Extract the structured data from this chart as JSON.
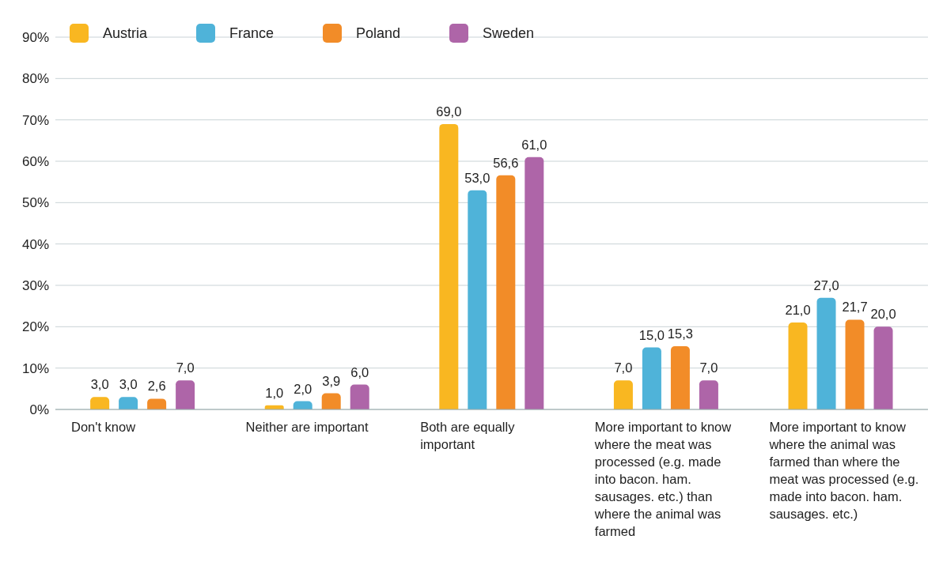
{
  "chart_data": {
    "type": "bar",
    "categories": [
      "Don't know",
      "Neither are important",
      "Both are equally important",
      "More important to know where the meat was processed (e.g. made into bacon. ham. sausages. etc.) than where the animal was farmed",
      "More important to know where the animal was farmed than where the meat was processed (e.g. made into bacon. ham. sausages. etc.)"
    ],
    "series": [
      {
        "name": "Austria",
        "color": "#f9b721",
        "values": [
          3.0,
          1.0,
          69.0,
          7.0,
          21.0
        ],
        "value_labels": [
          "3,0",
          "1,0",
          "69,0",
          "7,0",
          "21,0"
        ]
      },
      {
        "name": "France",
        "color": "#4fb3d9",
        "values": [
          3.0,
          2.0,
          53.0,
          15.0,
          27.0
        ],
        "value_labels": [
          "3,0",
          "2,0",
          "53,0",
          "15,0",
          "27,0"
        ]
      },
      {
        "name": "Poland",
        "color": "#f28c28",
        "values": [
          2.6,
          3.9,
          56.6,
          15.3,
          21.7
        ],
        "value_labels": [
          "2,6",
          "3,9",
          "56,6",
          "15,3",
          "21,7"
        ]
      },
      {
        "name": "Sweden",
        "color": "#ae65a8",
        "values": [
          7.0,
          6.0,
          61.0,
          7.0,
          20.0
        ],
        "value_labels": [
          "7,0",
          "6,0",
          "61,0",
          "7,0",
          "20,0"
        ]
      }
    ],
    "ylim": [
      0,
      90
    ],
    "yticks": [
      {
        "value": 0,
        "label": "0%"
      },
      {
        "value": 10,
        "label": "10%"
      },
      {
        "value": 20,
        "label": "20%"
      },
      {
        "value": 30,
        "label": "30%"
      },
      {
        "value": 40,
        "label": "40%"
      },
      {
        "value": 50,
        "label": "50%"
      },
      {
        "value": 60,
        "label": "60%"
      },
      {
        "value": 70,
        "label": "70%"
      },
      {
        "value": 80,
        "label": "80%"
      },
      {
        "value": 90,
        "label": "90%"
      }
    ],
    "grid": "y",
    "legend": "top left"
  }
}
